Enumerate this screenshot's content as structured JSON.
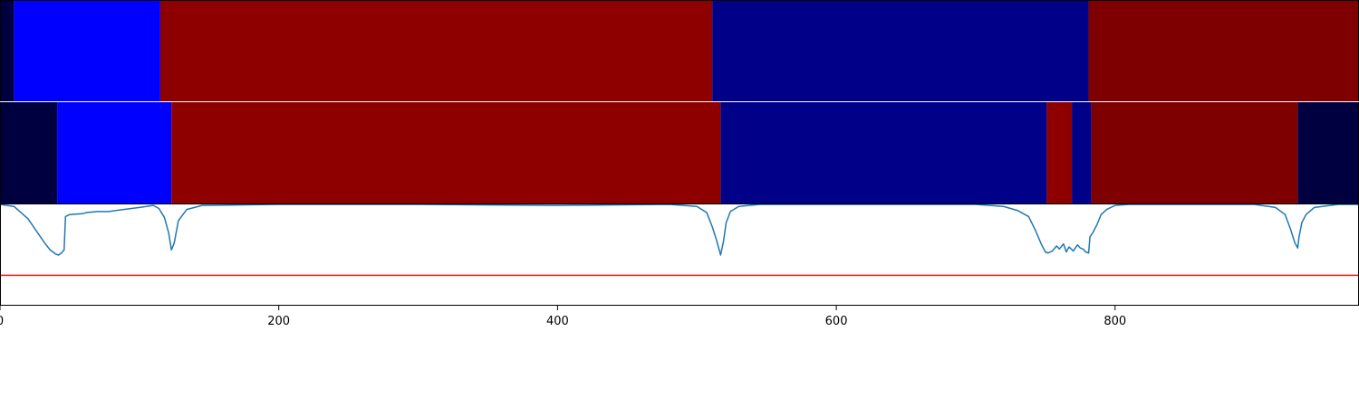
{
  "chart_data": {
    "type": "heatmap",
    "title": "",
    "xlabel": "",
    "ylabel": "",
    "xlim": [
      0,
      975
    ],
    "grid": false,
    "legend": "none",
    "x_ticks": [
      {
        "value": 0,
        "label": "0"
      },
      {
        "value": 200,
        "label": "200"
      },
      {
        "value": 400,
        "label": "400"
      },
      {
        "value": 600,
        "label": "600"
      },
      {
        "value": 800,
        "label": "800"
      }
    ],
    "panels": [
      {
        "kind": "segments",
        "segments": [
          {
            "start": 0,
            "end": 10,
            "color": "#000040"
          },
          {
            "start": 10,
            "end": 115,
            "color": "#0000ff"
          },
          {
            "start": 115,
            "end": 511,
            "color": "#8e0000"
          },
          {
            "start": 511,
            "end": 781,
            "color": "#000088"
          },
          {
            "start": 781,
            "end": 975,
            "color": "#7e0000"
          }
        ]
      },
      {
        "kind": "segments",
        "segments": [
          {
            "start": 0,
            "end": 41,
            "color": "#000040"
          },
          {
            "start": 41,
            "end": 123,
            "color": "#0000ff"
          },
          {
            "start": 123,
            "end": 517,
            "color": "#8e0000"
          },
          {
            "start": 517,
            "end": 751,
            "color": "#000088"
          },
          {
            "start": 751,
            "end": 769,
            "color": "#8e0000"
          },
          {
            "start": 769,
            "end": 783,
            "color": "#000088"
          },
          {
            "start": 783,
            "end": 931,
            "color": "#7e0000"
          },
          {
            "start": 931,
            "end": 975,
            "color": "#000040"
          }
        ]
      },
      {
        "kind": "line",
        "ylim": [
          0,
          1
        ],
        "threshold": 0.3,
        "threshold_color": "#e41a1c",
        "line_color": "#1f77b4",
        "x": [
          0,
          10,
          20,
          28,
          32,
          36,
          40,
          42,
          44,
          46,
          47,
          50,
          60,
          62,
          70,
          78,
          100,
          110,
          114,
          118,
          121,
          123,
          125,
          128,
          134,
          145,
          200,
          300,
          400,
          480,
          500,
          507,
          511,
          514,
          517,
          519,
          521,
          524,
          530,
          545,
          600,
          700,
          720,
          730,
          738,
          743,
          747,
          750,
          752,
          755,
          758,
          760,
          763,
          765,
          767,
          770,
          773,
          775,
          777,
          779,
          781,
          782,
          784,
          787,
          790,
          794,
          800,
          810,
          900,
          915,
          922,
          926,
          929,
          931,
          932,
          934,
          937,
          943,
          960,
          975
        ],
        "y": [
          1.0,
          0.98,
          0.86,
          0.7,
          0.62,
          0.55,
          0.51,
          0.5,
          0.52,
          0.55,
          0.88,
          0.9,
          0.91,
          0.92,
          0.93,
          0.93,
          0.97,
          0.99,
          0.96,
          0.87,
          0.72,
          0.55,
          0.62,
          0.84,
          0.95,
          0.99,
          1.0,
          1.0,
          0.99,
          1.0,
          0.98,
          0.92,
          0.78,
          0.65,
          0.5,
          0.63,
          0.82,
          0.93,
          0.98,
          1.0,
          1.0,
          1.0,
          0.98,
          0.94,
          0.88,
          0.74,
          0.61,
          0.53,
          0.52,
          0.54,
          0.59,
          0.56,
          0.61,
          0.53,
          0.58,
          0.54,
          0.6,
          0.57,
          0.56,
          0.53,
          0.52,
          0.68,
          0.72,
          0.8,
          0.9,
          0.95,
          0.99,
          1.0,
          1.0,
          0.97,
          0.9,
          0.75,
          0.62,
          0.57,
          0.68,
          0.82,
          0.9,
          0.97,
          1.0,
          1.0
        ]
      }
    ]
  }
}
